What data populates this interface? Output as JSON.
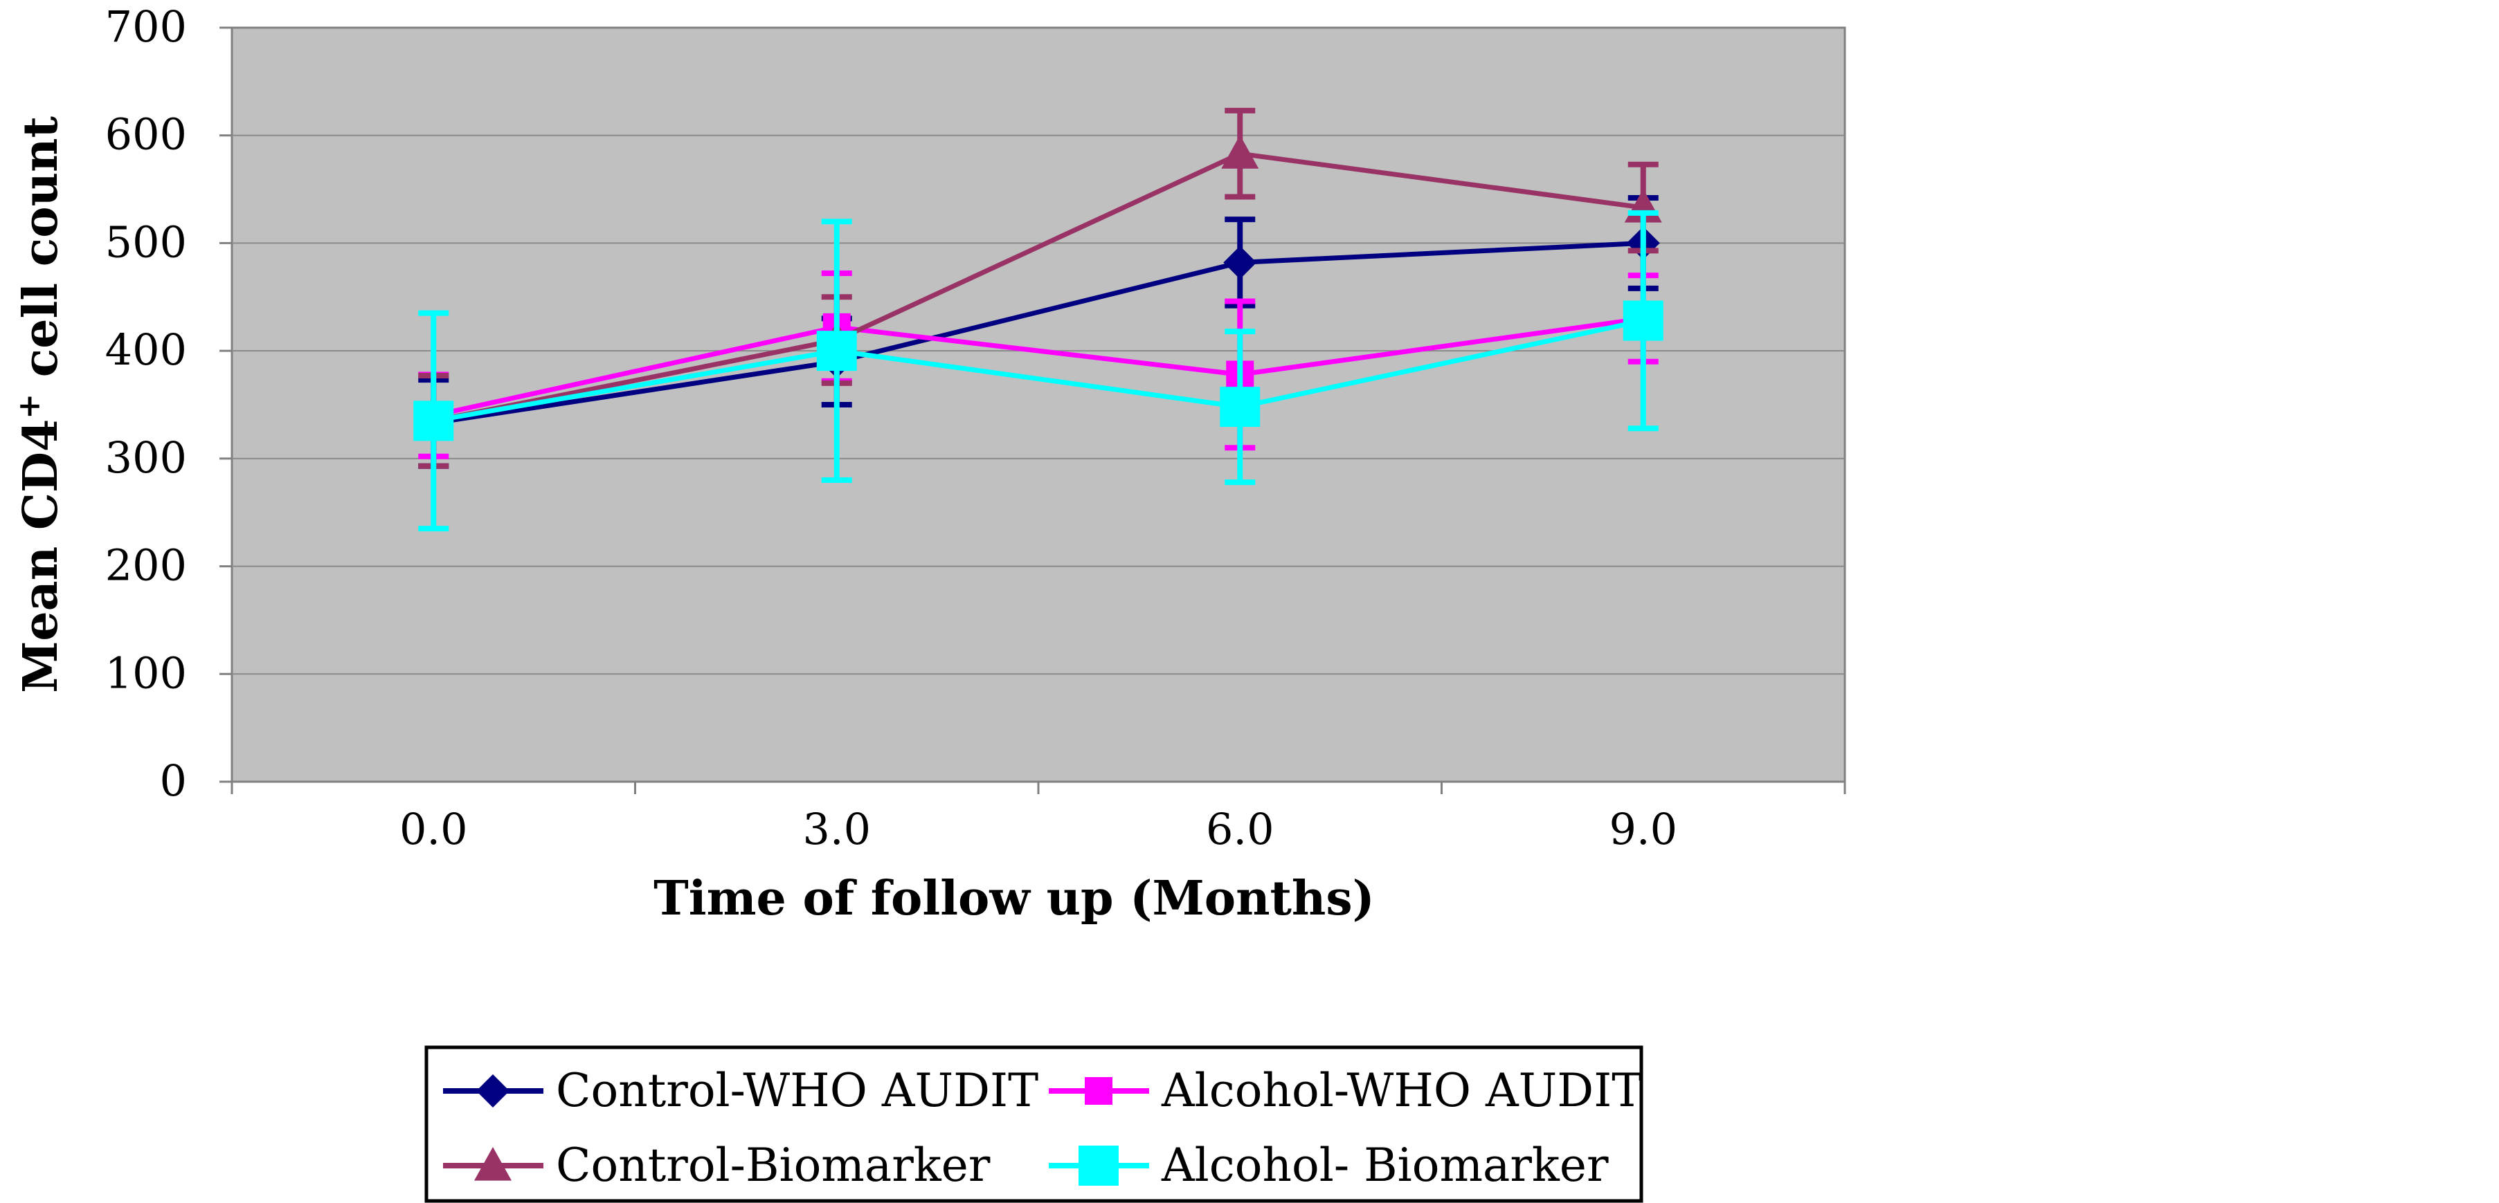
{
  "chart_data": {
    "type": "line",
    "title": "",
    "xlabel": "Time of follow up (Months)",
    "ylabel_main": "Mean CD4",
    "ylabel_sup": "+",
    "ylabel_rest": " cell count",
    "x": [
      0,
      3,
      6,
      9
    ],
    "x_tick_labels": [
      "0.0",
      "3.0",
      "6.0",
      "9.0"
    ],
    "y_ticks": [
      0,
      100,
      200,
      300,
      400,
      500,
      600,
      700
    ],
    "ylim": [
      0,
      700
    ],
    "grid": true,
    "plot_background": "#C0C0C0",
    "legend_position": "bottom-center",
    "series": [
      {
        "name": "Control-WHO AUDIT",
        "color": "#000080",
        "marker": "diamond",
        "values": [
          333,
          390,
          482,
          500
        ],
        "errors": [
          40,
          40,
          40,
          42
        ]
      },
      {
        "name": "Alcohol-WHO AUDIT",
        "color": "#FF00FF",
        "marker": "square",
        "values": [
          340,
          422,
          378,
          430
        ],
        "errors": [
          38,
          50,
          68,
          40
        ]
      },
      {
        "name": "Control-Biomarker",
        "color": "#993366",
        "marker": "triangle",
        "values": [
          335,
          410,
          583,
          533
        ],
        "errors": [
          42,
          40,
          40,
          40
        ]
      },
      {
        "name": "Alcohol- Biomarker",
        "color": "#00FFFF",
        "marker": "square-large",
        "values": [
          335,
          400,
          348,
          428
        ],
        "errors": [
          100,
          120,
          70,
          100
        ]
      }
    ]
  }
}
